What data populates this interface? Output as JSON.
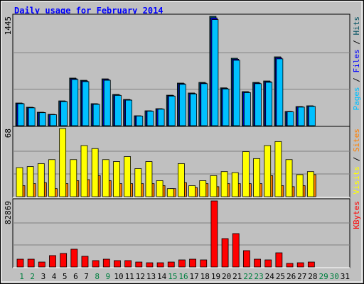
{
  "chart_data": {
    "type": "bar",
    "title": "Daily usage for February 2014",
    "legend_separator": " / ",
    "categories": [
      1,
      2,
      3,
      4,
      5,
      6,
      7,
      8,
      9,
      10,
      11,
      12,
      13,
      14,
      15,
      16,
      17,
      18,
      19,
      20,
      21,
      22,
      23,
      24,
      25,
      26,
      27,
      28,
      29,
      30,
      31
    ],
    "category_colors": [
      "#008040",
      "#008040",
      "#000000",
      "#000000",
      "#000000",
      "#000000",
      "#000000",
      "#008040",
      "#008040",
      "#000000",
      "#000000",
      "#000000",
      "#000000",
      "#000000",
      "#008040",
      "#008040",
      "#000000",
      "#000000",
      "#000000",
      "#000000",
      "#000000",
      "#008040",
      "#008040",
      "#000000",
      "#000000",
      "#000000",
      "#000000",
      "#000000",
      "#008040",
      "#008040",
      "#000000"
    ],
    "panels": [
      {
        "ylim": [
          0,
          1445
        ],
        "yticks": [
          1445
        ],
        "gridlines": [
          481.67,
          963.33
        ],
        "series": [
          {
            "name": "Hits",
            "color": "#005060",
            "values": [
              300,
              244,
              178,
              150,
              328,
              629,
              600,
              291,
              619,
              413,
              347,
              131,
              197,
              225,
              403,
              563,
              432,
              572,
              1445,
              500,
              891,
              450,
              572,
              591,
              910,
              188,
              253,
              263,
              null,
              null,
              null
            ]
          },
          {
            "name": "Files",
            "color": "#0000ff",
            "values": [
              295,
              239,
              175,
              147,
              323,
              620,
              591,
              286,
              610,
              406,
              342,
              129,
              194,
              221,
              397,
              555,
              425,
              563,
              1424,
              492,
              878,
              443,
              563,
              582,
              897,
              185,
              249,
              259,
              null,
              null,
              null
            ]
          },
          {
            "name": "Pages",
            "color": "#00c0ff",
            "values": [
              290,
              236,
              172,
              145,
              318,
              610,
              582,
              282,
              600,
              400,
              337,
              127,
              191,
              218,
              391,
              546,
              419,
              555,
              1402,
              485,
              864,
              437,
              555,
              573,
              883,
              182,
              245,
              255,
              null,
              null,
              null
            ]
          }
        ]
      },
      {
        "ylim": [
          0,
          68
        ],
        "yticks": [
          68
        ],
        "gridlines": [
          22.67,
          45.33
        ],
        "series": [
          {
            "name": "Sites",
            "color": "#ff8000",
            "values": [
              11,
              13,
              14,
              8,
              13,
              16,
              17,
              21,
              16,
              13,
              13,
              13,
              13,
              11,
              8,
              14,
              9,
              13,
              10,
              13,
              13,
              13,
              13,
              21,
              11,
              10,
              11,
              22,
              null,
              null,
              null
            ]
          },
          {
            "name": "Visits",
            "color": "#ffff00",
            "values": [
              29,
              30,
              33,
              37,
              68,
              37,
              51,
              48,
              37,
              35,
              40,
              28,
              35,
              16,
              8,
              33,
              11,
              16,
              21,
              25,
              24,
              45,
              38,
              51,
              55,
              37,
              22,
              25,
              null,
              null,
              null
            ]
          }
        ]
      },
      {
        "ylim": [
          0,
          82869
        ],
        "yticks": [
          82869
        ],
        "gridlines": [
          27623,
          55246
        ],
        "series": [
          {
            "name": "KBytes",
            "color": "#ff0000",
            "values": [
              9800,
              9800,
              6200,
              14300,
              17000,
              22300,
              13400,
              8000,
              9800,
              8000,
              8000,
              6200,
              5300,
              5300,
              6200,
              8900,
              9800,
              8900,
              82869,
              35600,
              41900,
              20500,
              9800,
              8900,
              17800,
              4500,
              5300,
              6200,
              null,
              null,
              null
            ]
          }
        ]
      }
    ]
  }
}
